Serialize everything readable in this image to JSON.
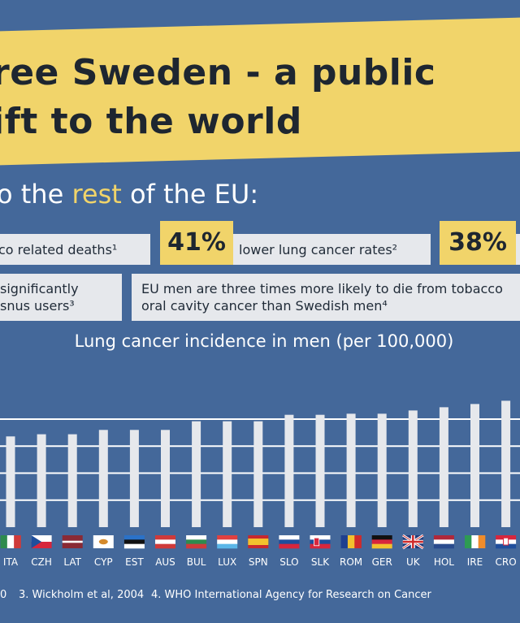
{
  "header": {
    "title_line1": "ree Sweden - a public",
    "title_line2": "ift to the world",
    "subtitle_pre": "o the ",
    "subtitle_highlight": "rest",
    "subtitle_post": " of the EU:"
  },
  "stats": {
    "row1_left": "co related deaths¹",
    "badge1": "41%",
    "row1_mid": "lower lung cancer rates²",
    "badge2": "38%",
    "row2_left_line1": "significantly",
    "row2_left_line2": "snus users³",
    "row2_right_line1": "EU men are three times more likely to die from tobacco",
    "row2_right_line2": "oral cavity cancer than Swedish men⁴"
  },
  "chart_data": {
    "type": "bar",
    "title": "Lung cancer incidence in men (per 100,000)",
    "categories": [
      "ITA",
      "CZH",
      "LAT",
      "CYP",
      "EST",
      "AUS",
      "BUL",
      "LUX",
      "SPN",
      "SLO",
      "SLK",
      "ROM",
      "GER",
      "UK",
      "HOL",
      "IRE",
      "CRO"
    ],
    "values": [
      84,
      86,
      86,
      90,
      90,
      90,
      98,
      98,
      98,
      104,
      104,
      105,
      105,
      108,
      111,
      114,
      117
    ],
    "grid": true
  },
  "footer": {
    "ref_a": "0",
    "ref3": "3. Wickholm et al, 2004",
    "ref4": "4. WHO International Agency for Research on Cancer"
  }
}
